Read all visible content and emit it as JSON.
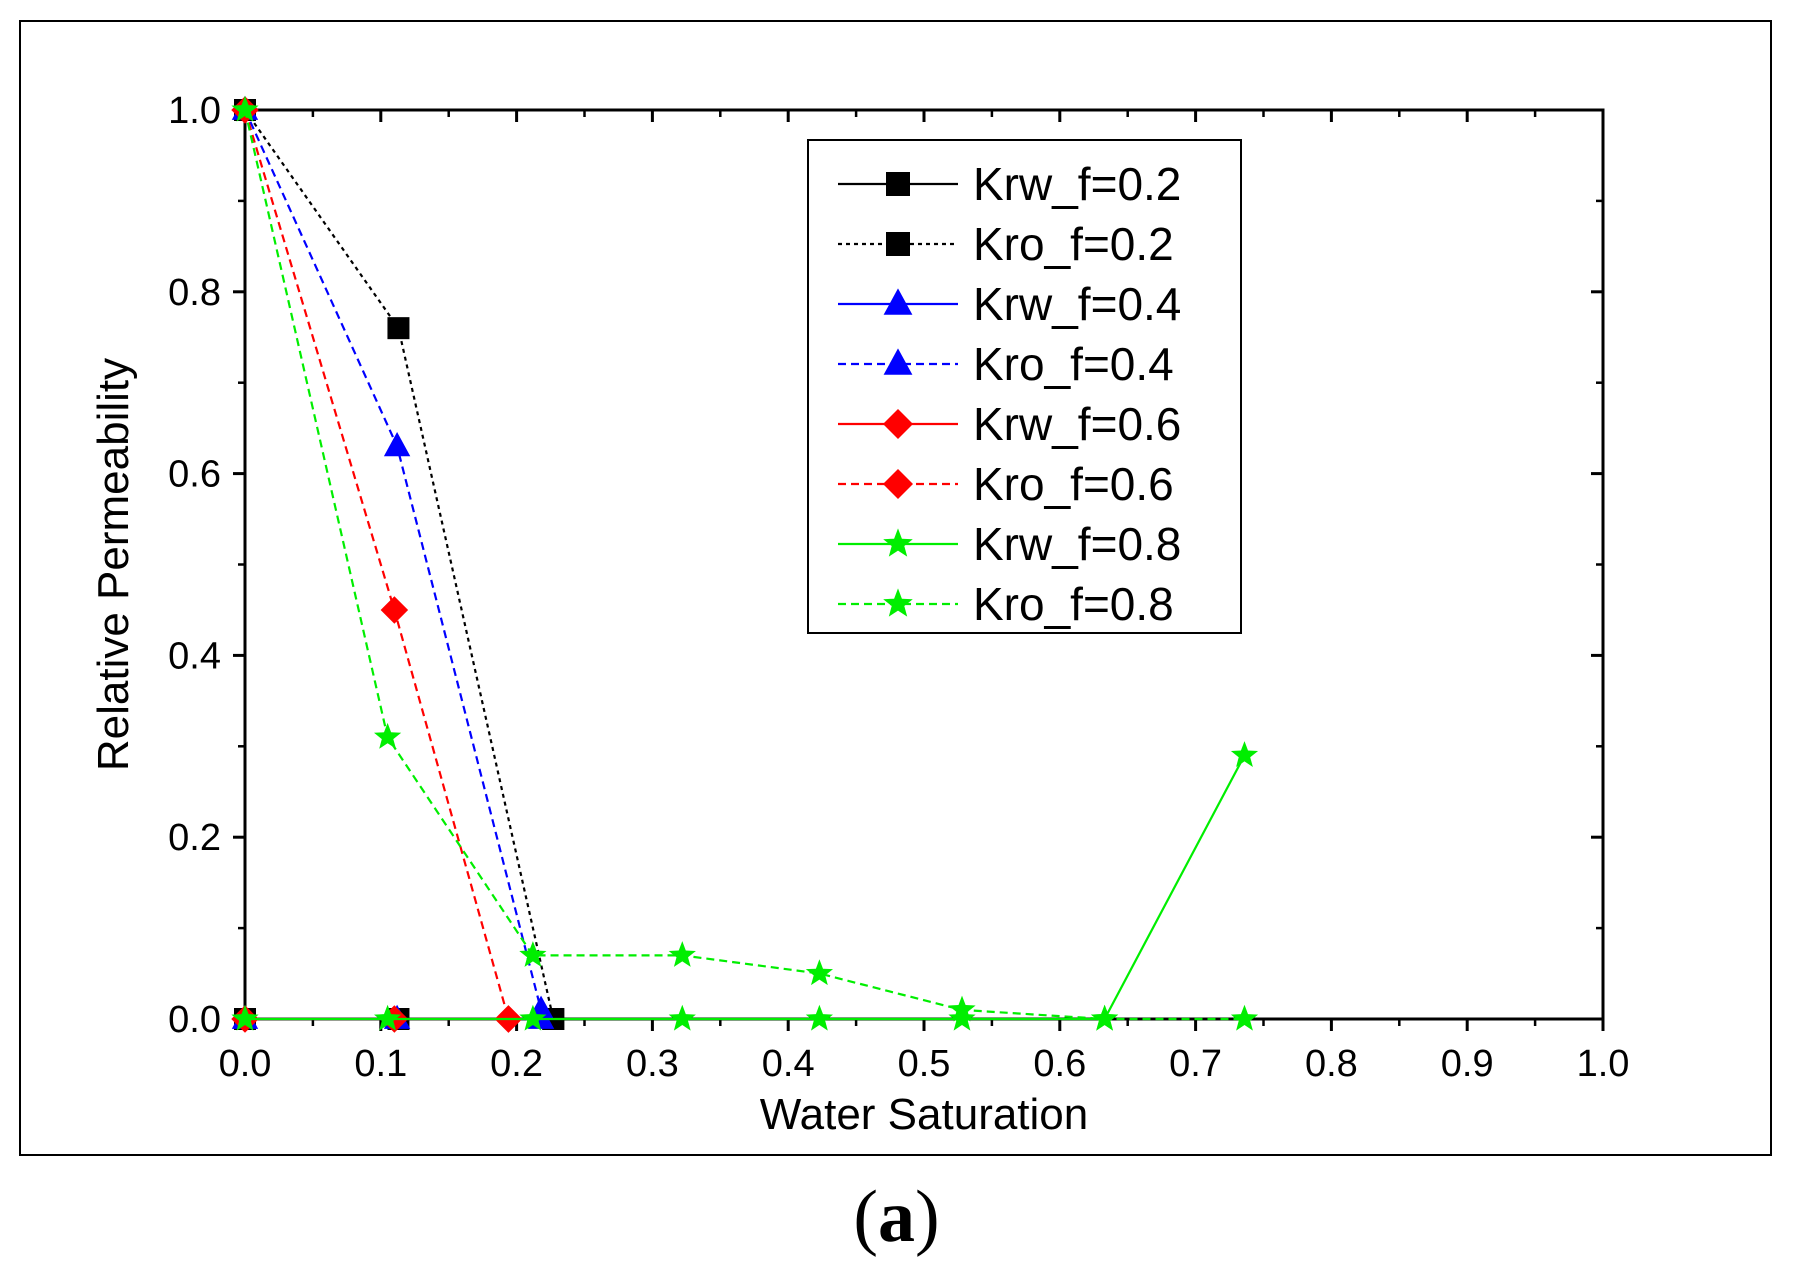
{
  "figure": {
    "caption_open": "(",
    "caption_label": "a",
    "caption_close": ")"
  },
  "chart_data": {
    "type": "line",
    "xlabel": "Water Saturation",
    "ylabel": "Relative Permeability",
    "xlim": [
      0,
      1.0
    ],
    "ylim": [
      0,
      1.0
    ],
    "xticks": [
      "0.0",
      "0.1",
      "0.2",
      "0.3",
      "0.4",
      "0.5",
      "0.6",
      "0.7",
      "0.8",
      "0.9",
      "1.0"
    ],
    "yticks": [
      "0.0",
      "0.2",
      "0.4",
      "0.6",
      "0.8",
      "1.0"
    ],
    "legend_position": "top-right",
    "series": [
      {
        "name": "Krw_f=0.2",
        "color": "#000000",
        "marker": "square",
        "dash": "solid",
        "x": [
          0.0,
          0.113,
          0.227
        ],
        "y": [
          0.0,
          0.0,
          0.0
        ]
      },
      {
        "name": "Kro_f=0.2",
        "color": "#000000",
        "marker": "square",
        "dash": "dotted",
        "x": [
          0.0,
          0.113,
          0.227
        ],
        "y": [
          1.0,
          0.76,
          0.0
        ]
      },
      {
        "name": "Krw_f=0.4",
        "color": "#0000ff",
        "marker": "triangle",
        "dash": "solid",
        "x": [
          0.0,
          0.112,
          0.218
        ],
        "y": [
          0.0,
          0.0,
          0.0
        ]
      },
      {
        "name": "Kro_f=0.4",
        "color": "#0000ff",
        "marker": "triangle",
        "dash": "dashed",
        "x": [
          0.0,
          0.112,
          0.218
        ],
        "y": [
          1.0,
          0.63,
          0.01
        ]
      },
      {
        "name": "Krw_f=0.6",
        "color": "#ff0000",
        "marker": "diamond",
        "dash": "solid",
        "x": [
          0.0,
          0.11,
          0.194
        ],
        "y": [
          0.0,
          0.0,
          0.0
        ]
      },
      {
        "name": "Kro_f=0.6",
        "color": "#ff0000",
        "marker": "diamond",
        "dash": "dashed",
        "x": [
          0.0,
          0.11,
          0.194
        ],
        "y": [
          1.0,
          0.45,
          0.0
        ]
      },
      {
        "name": "Krw_f=0.8",
        "color": "#00ee00",
        "marker": "star",
        "dash": "solid",
        "x": [
          0.0,
          0.105,
          0.212,
          0.322,
          0.423,
          0.528,
          0.633,
          0.736
        ],
        "y": [
          0.0,
          0.0,
          0.0,
          0.0,
          0.0,
          0.0,
          0.0,
          0.29
        ]
      },
      {
        "name": "Kro_f=0.8",
        "color": "#00ee00",
        "marker": "star",
        "dash": "dashed",
        "x": [
          0.0,
          0.105,
          0.212,
          0.322,
          0.423,
          0.528,
          0.633,
          0.736
        ],
        "y": [
          1.0,
          0.31,
          0.07,
          0.07,
          0.05,
          0.01,
          0.0,
          0.0
        ]
      }
    ]
  }
}
